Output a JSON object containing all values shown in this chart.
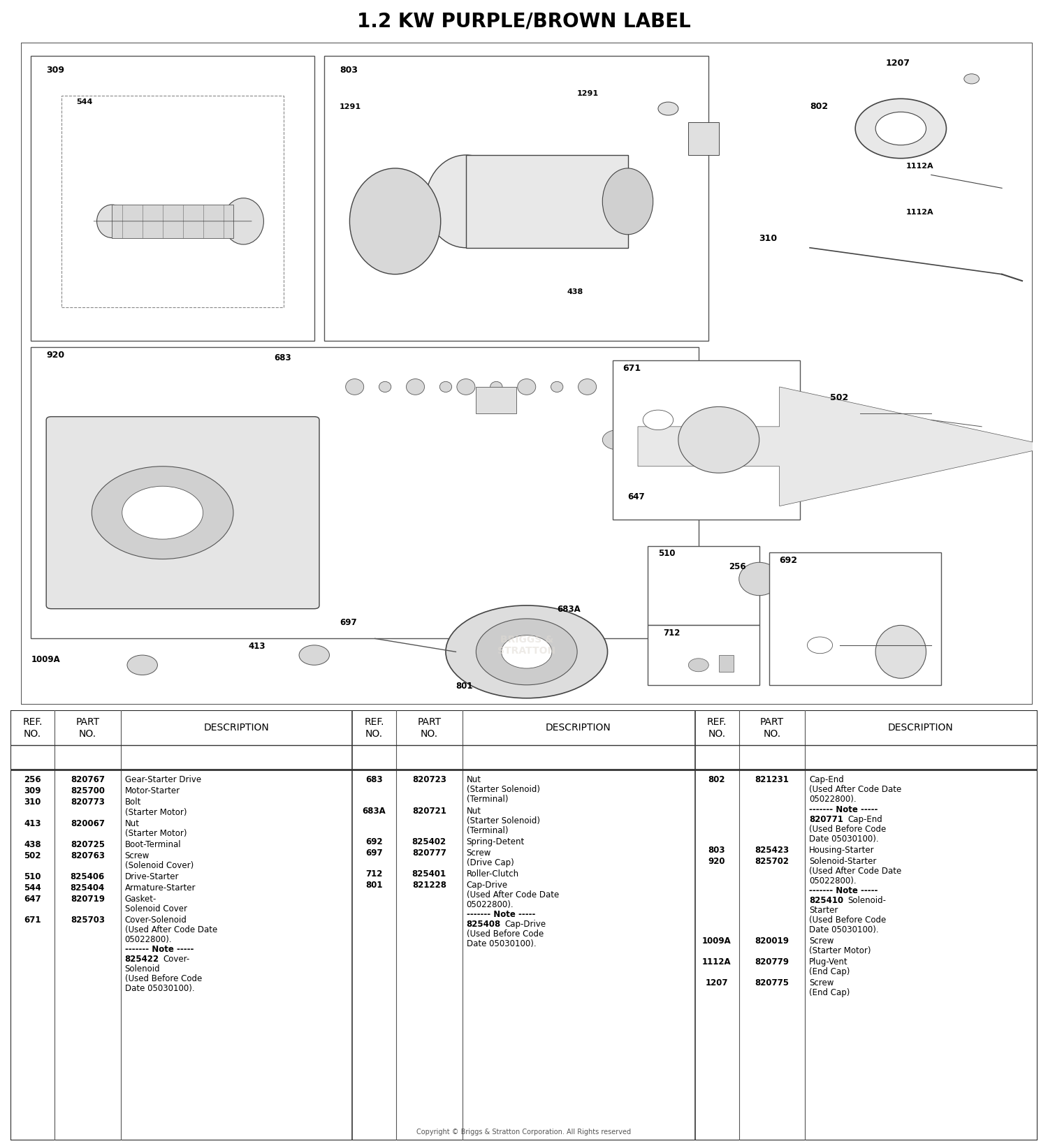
{
  "title": "1.2 KW PURPLE/BROWN LABEL",
  "title_fontsize": 20,
  "title_fontweight": "bold",
  "col1_data": [
    [
      "256",
      "820767",
      "Gear-Starter Drive"
    ],
    [
      "309",
      "825700",
      "Motor-Starter"
    ],
    [
      "310",
      "820773",
      "Bolt\n(Starter Motor)"
    ],
    [
      "413",
      "820067",
      "Nut\n(Starter Motor)"
    ],
    [
      "438",
      "820725",
      "Boot-Terminal"
    ],
    [
      "502",
      "820763",
      "Screw\n(Solenoid Cover)"
    ],
    [
      "510",
      "825406",
      "Drive-Starter"
    ],
    [
      "544",
      "825404",
      "Armature-Starter"
    ],
    [
      "647",
      "820719",
      "Gasket-\nSolenoid Cover"
    ],
    [
      "671",
      "825703",
      "Cover-Solenoid\n(Used After Code Date\n05022800).\n------- Note -----\n825422 Cover-\nSolenoid\n(Used Before Code\nDate 05030100)."
    ]
  ],
  "col2_data": [
    [
      "683",
      "820723",
      "Nut\n(Starter Solenoid)\n(Terminal)"
    ],
    [
      "683A",
      "820721",
      "Nut\n(Starter Solenoid)\n(Terminal)"
    ],
    [
      "692",
      "825402",
      "Spring-Detent"
    ],
    [
      "697",
      "820777",
      "Screw\n(Drive Cap)"
    ],
    [
      "712",
      "825401",
      "Roller-Clutch"
    ],
    [
      "801",
      "821228",
      "Cap-Drive\n(Used After Code Date\n05022800).\n------- Note -----\n825408 Cap-Drive\n(Used Before Code\nDate 05030100)."
    ]
  ],
  "col3_data": [
    [
      "802",
      "821231",
      "Cap-End\n(Used After Code Date\n05022800).\n------- Note -----\n820771 Cap-End\n(Used Before Code\nDate 05030100)."
    ],
    [
      "803",
      "825423",
      "Housing-Starter"
    ],
    [
      "920",
      "825702",
      "Solenoid-Starter\n(Used After Code Date\n05022800).\n------- Note -----\n825410 Solenoid-\nStarter\n(Used Before Code\nDate 05030100)."
    ],
    [
      "1009A",
      "820019",
      "Screw\n(Starter Motor)"
    ],
    [
      "1112A",
      "820779",
      "Plug-Vent\n(End Cap)"
    ],
    [
      "1207",
      "820775",
      "Screw\n(End Cap)"
    ]
  ],
  "copyright": "Copyright © Briggs & Stratton Corporation. All Rights reserved",
  "bg_color": "#ffffff"
}
